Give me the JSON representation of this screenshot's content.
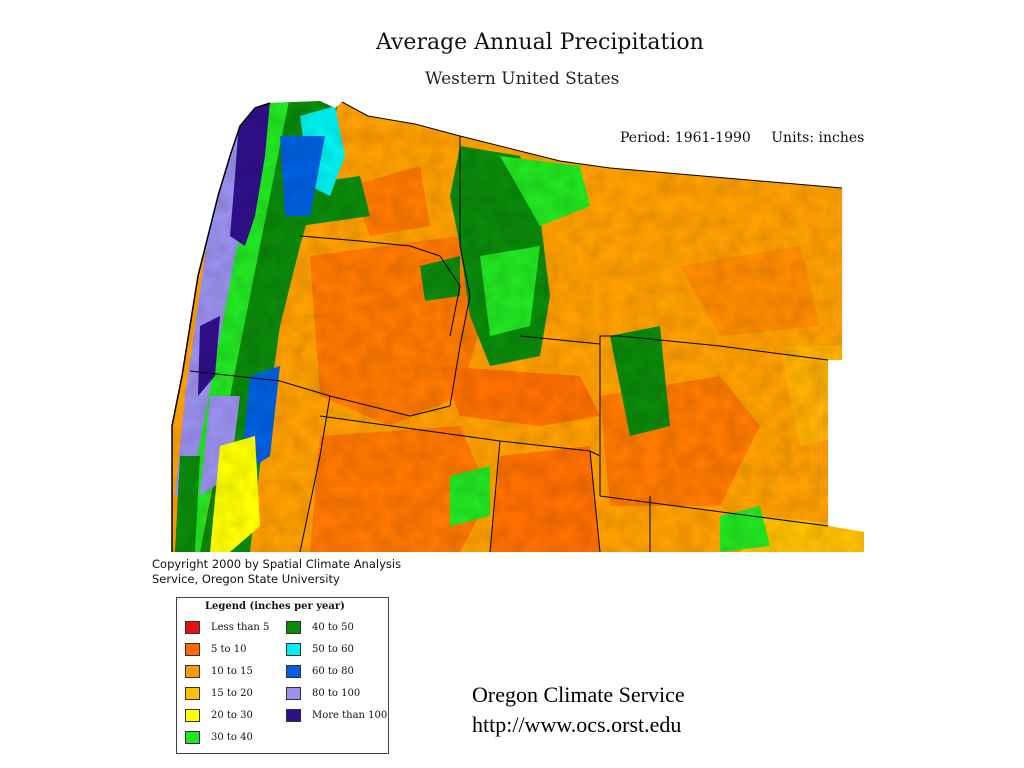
{
  "title": "Average Annual Precipitation",
  "subtitle": "Western United States",
  "period": "Period: 1961-1990",
  "units": "Units: inches",
  "copyright": {
    "line1": "Copyright 2000 by Spatial Climate Analysis",
    "line2": "Service, Oregon State University"
  },
  "legend": {
    "title": "Legend (inches per year)",
    "items": [
      {
        "label": "Less than 5",
        "color": "#e81010"
      },
      {
        "label": "5 to 10",
        "color": "#ff6a00"
      },
      {
        "label": "10 to 15",
        "color": "#ff9a00"
      },
      {
        "label": "15 to 20",
        "color": "#ffc000"
      },
      {
        "label": "20 to 30",
        "color": "#ffff00"
      },
      {
        "label": "30 to 40",
        "color": "#22e622"
      },
      {
        "label": "40 to 50",
        "color": "#0a8a0a"
      },
      {
        "label": "50 to 60",
        "color": "#00f0f0"
      },
      {
        "label": "60 to 80",
        "color": "#0060e0"
      },
      {
        "label": "80 to 100",
        "color": "#9a90ee"
      },
      {
        "label": "More than 100",
        "color": "#30108a"
      }
    ]
  },
  "credit": {
    "name": "Oregon Climate Service",
    "url": "http://www.ocs.orst.edu"
  }
}
